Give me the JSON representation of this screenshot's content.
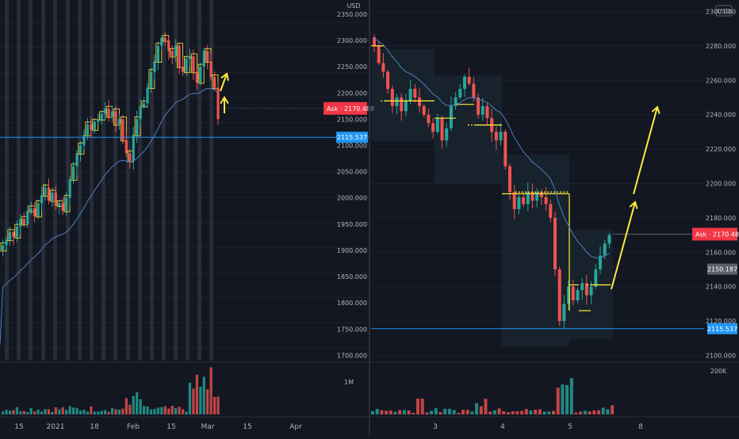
{
  "colors": {
    "background": "#131722",
    "grid": "#1e222d",
    "axis_text": "#b2b5be",
    "up": "#26a69a",
    "down": "#ef5350",
    "ma": "#2962ff",
    "ha_overlay": "#ffeb3b",
    "arrow": "#ffeb3b",
    "level_line": "#2196f3",
    "ask_bg": "#f23645",
    "level_tag_bg": "#2196f3",
    "last_tag_bg": "#5d606b",
    "session_bar": "#3a3e4a",
    "session_box": "#1a2a33"
  },
  "left_panel": {
    "currency_label": "USD",
    "price_axis": [
      "2350.000",
      "2300.000",
      "2250.000",
      "2200.000",
      "2150.000",
      "2100.000",
      "2050.000",
      "2000.000",
      "1950.000",
      "1900.000",
      "1850.000",
      "1800.000",
      "1750.000",
      "1700.000"
    ],
    "ask_label": "Ask",
    "ask_price": "2170.488",
    "level_price": "2115.537",
    "volume_label": "1M",
    "time_axis": [
      "15",
      "2021",
      "18",
      "Feb",
      "15",
      "Mar",
      "15",
      "Apr"
    ]
  },
  "right_panel": {
    "currency_label": "USD",
    "price_axis": [
      "2300.000",
      "2280.000",
      "2260.000",
      "2240.000",
      "2220.000",
      "2200.000",
      "2180.000",
      "2160.000",
      "2140.000",
      "2120.000",
      "2100.000"
    ],
    "ask_label": "Ask",
    "ask_price": "2170.488",
    "last_price": "2150.187",
    "level_price": "2115.537",
    "volume_label": "200K",
    "time_axis": [
      "3",
      "4",
      "5",
      "8"
    ]
  },
  "chart_data": [
    {
      "type": "candlestick",
      "timeframe": "daily",
      "ylim": [
        1690,
        2365
      ],
      "x_ticks": [
        "15",
        "2021",
        "18",
        "Feb",
        "15",
        "Mar",
        "15",
        "Apr"
      ],
      "horizontal_level": 2115.537,
      "ask": 2170.488,
      "ohlc_close_series": [
        1910,
        1920,
        1935,
        1925,
        1945,
        1960,
        1950,
        1975,
        1980,
        1965,
        1990,
        2005,
        2020,
        1995,
        2010,
        1985,
        1990,
        1975,
        2000,
        2035,
        2060,
        2085,
        2100,
        2120,
        2140,
        2130,
        2145,
        2150,
        2160,
        2170,
        2155,
        2165,
        2140,
        2150,
        2110,
        2085,
        2070,
        2120,
        2150,
        2175,
        2180,
        2210,
        2240,
        2260,
        2290,
        2305,
        2300,
        2280,
        2270,
        2290,
        2250,
        2240,
        2265,
        2270,
        2240,
        2220,
        2250,
        2280,
        2260,
        2230,
        2210,
        2150
      ],
      "moving_average_end": 2205,
      "arrows": [
        {
          "from": [
            2195
          ],
          "to": [
            2240
          ],
          "direction": "up"
        },
        {
          "from": [
            2165
          ],
          "to": [
            2205
          ],
          "direction": "up"
        }
      ]
    },
    {
      "type": "candlestick",
      "timeframe": "intraday",
      "ylim": [
        2097,
        2303
      ],
      "x_ticks": [
        "3",
        "4",
        "5",
        "8"
      ],
      "horizontal_level": 2115.537,
      "ask": 2170.488,
      "last": 2150.187,
      "sessions": [
        "3",
        "4",
        "5"
      ],
      "ohlc_close_series": [
        2280,
        2270,
        2265,
        2255,
        2245,
        2250,
        2242,
        2248,
        2255,
        2250,
        2245,
        2240,
        2235,
        2230,
        2238,
        2225,
        2232,
        2245,
        2250,
        2255,
        2262,
        2258,
        2250,
        2240,
        2245,
        2238,
        2230,
        2225,
        2230,
        2210,
        2195,
        2185,
        2192,
        2188,
        2195,
        2190,
        2195,
        2192,
        2188,
        2180,
        2150,
        2120,
        2130,
        2140,
        2132,
        2138,
        2142,
        2135,
        2140,
        2150,
        2158,
        2165,
        2170
      ],
      "moving_average_end": 2164,
      "arrows": [
        {
          "from": [
            2141
          ],
          "to": [
            2198
          ],
          "direction": "up"
        },
        {
          "from": [
            2199
          ],
          "to": [
            2250
          ],
          "direction": "up"
        }
      ]
    }
  ]
}
